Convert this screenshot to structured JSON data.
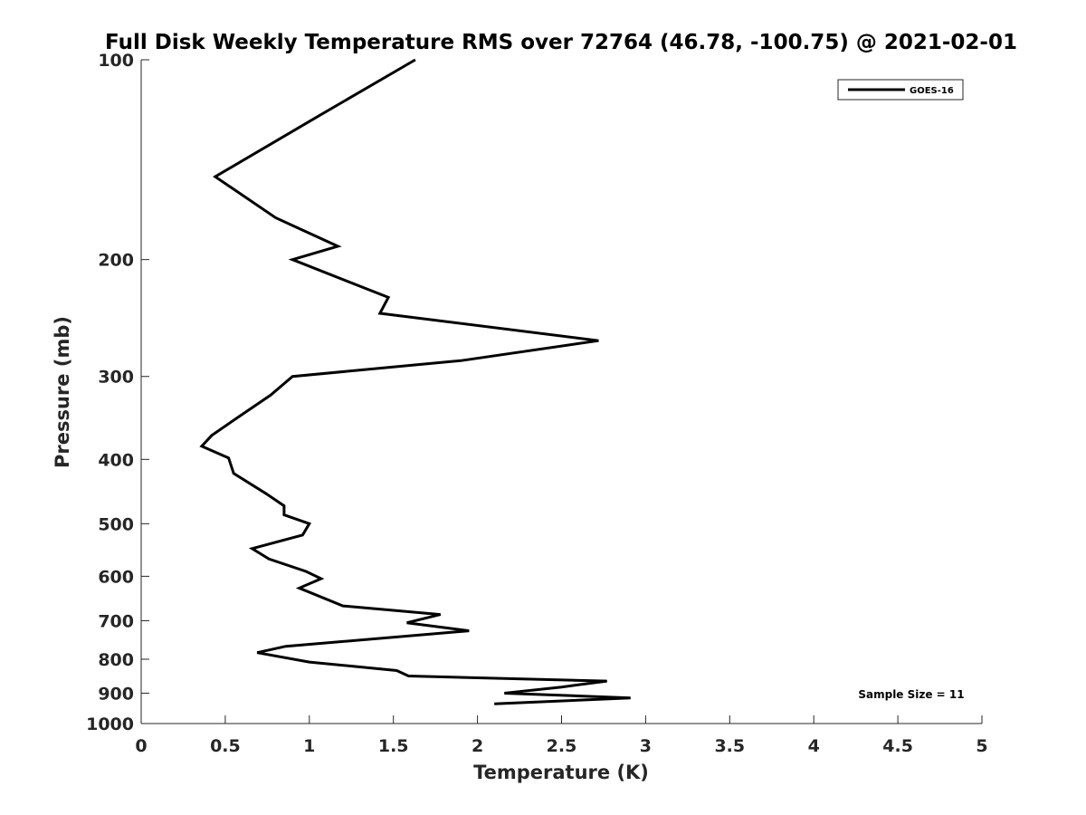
{
  "chart_data": {
    "type": "line",
    "title": "Full Disk Weekly Temperature RMS over 72764 (46.78, -100.75) @ 2021-02-01",
    "xlabel": "Temperature (K)",
    "ylabel": "Pressure (mb)",
    "xlim": [
      0,
      5
    ],
    "ylim": [
      100,
      1000
    ],
    "y_scale": "log",
    "y_reversed": true,
    "grid": false,
    "legend_position": "top-right",
    "x_ticks": [
      "0",
      "0.5",
      "1",
      "1.5",
      "2",
      "2.5",
      "3",
      "3.5",
      "4",
      "4.5",
      "5"
    ],
    "y_ticks": [
      "100",
      "200",
      "300",
      "400",
      "500",
      "600",
      "700",
      "800",
      "900",
      "1000"
    ],
    "annotation": "Sample Size = 11",
    "series": [
      {
        "name": "GOES-16",
        "color": "#000000",
        "x": [
          1.63,
          1.02,
          0.44,
          0.8,
          1.17,
          0.9,
          1.47,
          1.42,
          2.72,
          1.9,
          0.9,
          0.77,
          0.58,
          0.42,
          0.36,
          0.52,
          0.55,
          0.74,
          0.85,
          0.85,
          1.0,
          0.96,
          0.66,
          0.76,
          0.98,
          1.07,
          0.94,
          1.2,
          1.78,
          1.58,
          1.95,
          0.86,
          0.69,
          1.0,
          1.52,
          1.59,
          2.77,
          2.5,
          2.16,
          2.91,
          2.1
        ],
        "y": [
          100,
          123,
          150,
          173,
          191,
          200,
          228,
          241,
          265,
          284,
          300,
          320,
          345,
          368,
          382,
          398,
          420,
          450,
          470,
          485,
          500,
          520,
          545,
          565,
          590,
          605,
          625,
          665,
          685,
          705,
          725,
          765,
          782,
          808,
          832,
          848,
          863,
          881,
          900,
          915,
          934
        ]
      }
    ]
  }
}
